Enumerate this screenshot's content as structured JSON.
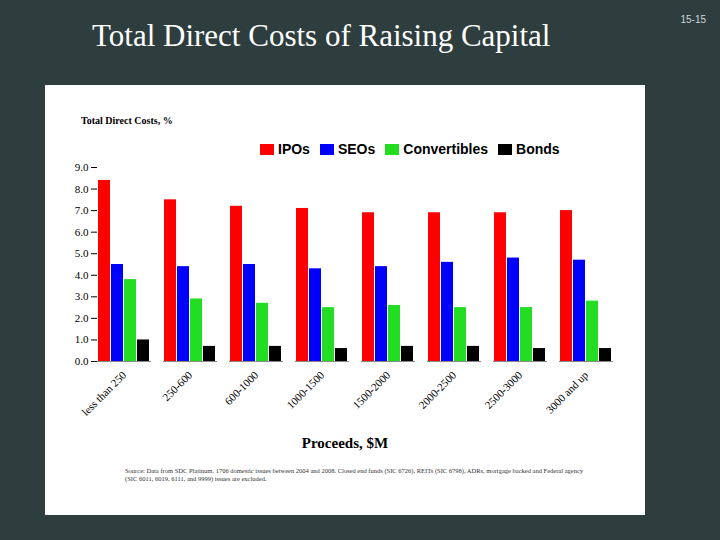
{
  "chart_data": {
    "type": "bar",
    "title": "Total Direct Costs of Raising Capital",
    "annotations": [
      "15-15"
    ],
    "y_label": "Total Direct Costs, %",
    "x_label": "Proceeds, $M",
    "caption": "Source: Data from SDC Platinum. 1706 domestic issues between 2004 and 2008. Closed end funds (SIC 6726), REITs (SIC 6798), ADRs, mortgage backed and Federal agency (SIC 6011, 6019, 6111, and 9999) issues are excluded.",
    "categories": [
      "less than 250",
      "250-600",
      "600-1000",
      "1000-1500",
      "1500-2000",
      "2000-2500",
      "2500-3000",
      "3000 and up"
    ],
    "series": [
      {
        "name": "IPOs",
        "color": "#ff0000",
        "values": [
          8.4,
          7.5,
          7.2,
          7.1,
          6.9,
          6.9,
          6.9,
          7.0
        ]
      },
      {
        "name": "SEOs",
        "color": "#0000ff",
        "values": [
          4.5,
          4.4,
          4.5,
          4.3,
          4.4,
          4.6,
          4.8,
          4.7
        ]
      },
      {
        "name": "Convertibles",
        "color": "#22dd22",
        "values": [
          3.8,
          2.9,
          2.7,
          2.5,
          2.6,
          2.5,
          2.5,
          2.8
        ]
      },
      {
        "name": "Bonds",
        "color": "#000000",
        "values": [
          1.0,
          0.7,
          0.7,
          0.6,
          0.7,
          0.7,
          0.6,
          0.6
        ]
      }
    ],
    "ylim": [
      0,
      9
    ],
    "yticks": [
      {
        "value": 0,
        "label": "0.0"
      },
      {
        "value": 1,
        "label": "1.0"
      },
      {
        "value": 2,
        "label": "2.0"
      },
      {
        "value": 3,
        "label": "3.0"
      },
      {
        "value": 4,
        "label": "4.0"
      },
      {
        "value": 5,
        "label": "5.0"
      },
      {
        "value": 6,
        "label": "6.0"
      },
      {
        "value": 7,
        "label": "7.0"
      },
      {
        "value": 8,
        "label": "8.0"
      },
      {
        "value": 9,
        "label": "9.0"
      }
    ],
    "grid": false,
    "legend": "top"
  }
}
